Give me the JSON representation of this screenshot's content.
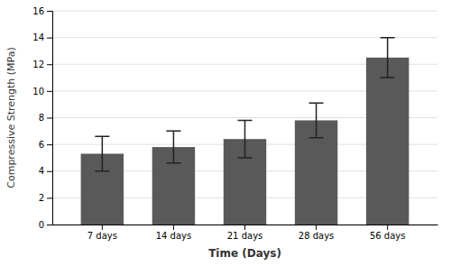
{
  "chart_data": {
    "type": "bar",
    "xlabel": "Time (Days)",
    "ylabel": "Compressive Strength (MPa)",
    "categories": [
      "7 days",
      "14 days",
      "21 days",
      "28 days",
      "56 days"
    ],
    "values": [
      5.3,
      5.8,
      6.4,
      7.8,
      12.5
    ],
    "errors": [
      1.3,
      1.2,
      1.4,
      1.3,
      1.5
    ],
    "color": "#595959",
    "ylim": [
      0,
      16
    ],
    "yticks": [
      0,
      2,
      4,
      6,
      8,
      10,
      12,
      14,
      16
    ],
    "grid": true
  }
}
